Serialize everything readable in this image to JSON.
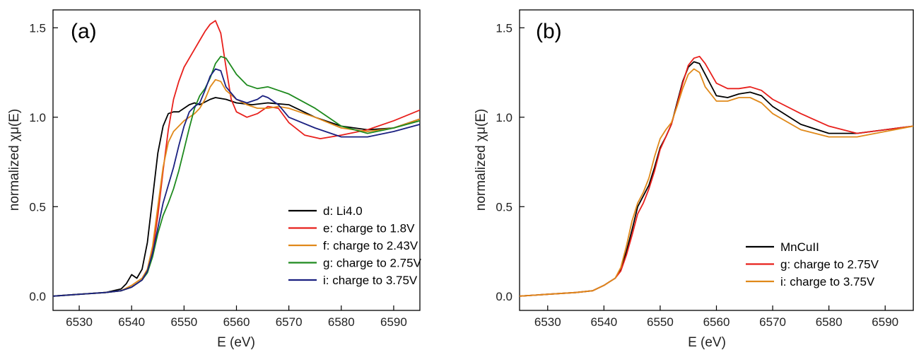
{
  "chart_data": [
    {
      "type": "line",
      "panel_label": "(a)",
      "xlabel": "E (eV)",
      "ylabel_prefix": "normalized ",
      "ylabel_symbol": "χμ",
      "ylabel_suffix": "(E)",
      "xlim": [
        6525,
        6595
      ],
      "ylim": [
        -0.08,
        1.6
      ],
      "xticks": [
        6530,
        6540,
        6550,
        6560,
        6570,
        6580,
        6590
      ],
      "yticks": [
        0.0,
        0.5,
        1.0,
        1.5
      ],
      "ytick_labels": [
        "0.0",
        "0.5",
        "1.0",
        "1.5"
      ],
      "legend_position": "bottom-right",
      "series": [
        {
          "name": "d: Li4.0",
          "color": "#000000",
          "x": [
            6525,
            6530,
            6535,
            6538,
            6539,
            6540,
            6541,
            6542,
            6543,
            6544,
            6545,
            6546,
            6547,
            6548,
            6549,
            6550,
            6551,
            6552,
            6553,
            6555,
            6556,
            6558,
            6560,
            6563,
            6566,
            6570,
            6575,
            6580,
            6585,
            6590,
            6595
          ],
          "y": [
            0.0,
            0.01,
            0.02,
            0.04,
            0.07,
            0.12,
            0.1,
            0.15,
            0.3,
            0.55,
            0.8,
            0.95,
            1.02,
            1.03,
            1.03,
            1.05,
            1.07,
            1.08,
            1.07,
            1.1,
            1.11,
            1.1,
            1.08,
            1.07,
            1.08,
            1.07,
            1.0,
            0.95,
            0.93,
            0.94,
            0.99
          ]
        },
        {
          "name": "e: charge to 1.8V",
          "color": "#e8201c",
          "x": [
            6525,
            6530,
            6535,
            6538,
            6540,
            6541,
            6542,
            6543,
            6544,
            6545,
            6546,
            6547,
            6548,
            6549,
            6550,
            6551,
            6552,
            6553,
            6554,
            6555,
            6556,
            6557,
            6558,
            6559,
            6560,
            6562,
            6564,
            6566,
            6568,
            6570,
            6573,
            6576,
            6580,
            6585,
            6590,
            6595
          ],
          "y": [
            0.0,
            0.01,
            0.02,
            0.03,
            0.05,
            0.07,
            0.09,
            0.14,
            0.25,
            0.45,
            0.7,
            0.93,
            1.1,
            1.2,
            1.28,
            1.33,
            1.38,
            1.43,
            1.48,
            1.52,
            1.54,
            1.47,
            1.28,
            1.1,
            1.03,
            1.0,
            1.02,
            1.06,
            1.05,
            0.97,
            0.9,
            0.88,
            0.9,
            0.93,
            0.98,
            1.04
          ]
        },
        {
          "name": "f: charge to 2.43V",
          "color": "#e0891a",
          "x": [
            6525,
            6530,
            6535,
            6538,
            6540,
            6541,
            6542,
            6543,
            6544,
            6545,
            6546,
            6547,
            6548,
            6549,
            6550,
            6551,
            6552,
            6553,
            6554,
            6555,
            6556,
            6557,
            6558,
            6560,
            6562,
            6564,
            6566,
            6568,
            6570,
            6575,
            6580,
            6585,
            6590,
            6595
          ],
          "y": [
            0.0,
            0.01,
            0.02,
            0.03,
            0.06,
            0.08,
            0.1,
            0.15,
            0.28,
            0.5,
            0.72,
            0.86,
            0.92,
            0.95,
            0.98,
            1.0,
            1.02,
            1.05,
            1.1,
            1.17,
            1.21,
            1.2,
            1.15,
            1.1,
            1.07,
            1.05,
            1.05,
            1.06,
            1.05,
            1.0,
            0.94,
            0.92,
            0.94,
            0.99
          ]
        },
        {
          "name": "g: charge to 2.75V",
          "color": "#1e8a1e",
          "x": [
            6525,
            6530,
            6535,
            6538,
            6540,
            6542,
            6543,
            6544,
            6545,
            6546,
            6547,
            6548,
            6549,
            6550,
            6551,
            6552,
            6553,
            6554,
            6555,
            6556,
            6557,
            6558,
            6560,
            6562,
            6564,
            6566,
            6568,
            6570,
            6575,
            6580,
            6585,
            6590,
            6595
          ],
          "y": [
            0.0,
            0.01,
            0.02,
            0.03,
            0.05,
            0.09,
            0.13,
            0.22,
            0.35,
            0.45,
            0.52,
            0.6,
            0.7,
            0.82,
            0.94,
            1.05,
            1.12,
            1.16,
            1.22,
            1.3,
            1.34,
            1.33,
            1.24,
            1.18,
            1.16,
            1.17,
            1.15,
            1.13,
            1.05,
            0.95,
            0.91,
            0.94,
            0.98
          ]
        },
        {
          "name": "i: charge to 3.75V",
          "color": "#1a2080",
          "x": [
            6525,
            6530,
            6535,
            6538,
            6540,
            6542,
            6543,
            6544,
            6545,
            6546,
            6547,
            6548,
            6549,
            6550,
            6551,
            6552,
            6553,
            6554,
            6555,
            6556,
            6557,
            6558,
            6560,
            6562,
            6564,
            6565,
            6566,
            6568,
            6570,
            6575,
            6580,
            6585,
            6590,
            6595
          ],
          "y": [
            0.0,
            0.01,
            0.02,
            0.03,
            0.05,
            0.09,
            0.14,
            0.24,
            0.38,
            0.52,
            0.62,
            0.72,
            0.84,
            0.95,
            1.03,
            1.06,
            1.08,
            1.15,
            1.23,
            1.27,
            1.26,
            1.17,
            1.1,
            1.08,
            1.1,
            1.12,
            1.11,
            1.07,
            1.0,
            0.94,
            0.89,
            0.89,
            0.92,
            0.96
          ]
        }
      ]
    },
    {
      "type": "line",
      "panel_label": "(b)",
      "xlabel": "E (eV)",
      "ylabel_prefix": "normalized ",
      "ylabel_symbol": "χμ",
      "ylabel_suffix": "(E)",
      "xlim": [
        6525,
        6595
      ],
      "ylim": [
        -0.08,
        1.6
      ],
      "xticks": [
        6530,
        6540,
        6550,
        6560,
        6570,
        6580,
        6590
      ],
      "yticks": [
        0.0,
        0.5,
        1.0,
        1.5
      ],
      "ytick_labels": [
        "0.0",
        "0.5",
        "1.0",
        "1.5"
      ],
      "legend_position": "bottom-right",
      "series": [
        {
          "name": "MnCuII",
          "color": "#000000",
          "x": [
            6525,
            6530,
            6535,
            6538,
            6540,
            6541,
            6542,
            6543,
            6544,
            6545,
            6546,
            6547,
            6548,
            6549,
            6550,
            6551,
            6552,
            6553,
            6554,
            6555,
            6556,
            6557,
            6558,
            6560,
            6562,
            6564,
            6566,
            6568,
            6570,
            6575,
            6580,
            6585,
            6590,
            6595
          ],
          "y": [
            0.0,
            0.01,
            0.02,
            0.03,
            0.06,
            0.08,
            0.1,
            0.15,
            0.25,
            0.37,
            0.5,
            0.56,
            0.62,
            0.72,
            0.83,
            0.89,
            0.96,
            1.08,
            1.2,
            1.28,
            1.31,
            1.3,
            1.24,
            1.12,
            1.11,
            1.13,
            1.14,
            1.12,
            1.06,
            0.96,
            0.91,
            0.91,
            0.93,
            0.95
          ]
        },
        {
          "name": "g: charge to 2.75V",
          "color": "#e8201c",
          "x": [
            6525,
            6530,
            6535,
            6538,
            6540,
            6541,
            6542,
            6543,
            6544,
            6545,
            6546,
            6547,
            6548,
            6549,
            6550,
            6551,
            6552,
            6553,
            6554,
            6555,
            6556,
            6557,
            6558,
            6560,
            6562,
            6564,
            6566,
            6568,
            6570,
            6575,
            6580,
            6585,
            6590,
            6595
          ],
          "y": [
            0.0,
            0.01,
            0.02,
            0.03,
            0.06,
            0.08,
            0.1,
            0.14,
            0.23,
            0.34,
            0.46,
            0.52,
            0.6,
            0.7,
            0.82,
            0.89,
            0.96,
            1.07,
            1.19,
            1.29,
            1.33,
            1.34,
            1.3,
            1.19,
            1.16,
            1.16,
            1.17,
            1.15,
            1.1,
            1.02,
            0.95,
            0.91,
            0.93,
            0.95
          ]
        },
        {
          "name": "i: charge to 3.75V",
          "color": "#e0891a",
          "x": [
            6525,
            6530,
            6535,
            6538,
            6540,
            6541,
            6542,
            6543,
            6544,
            6545,
            6546,
            6547,
            6548,
            6549,
            6550,
            6551,
            6552,
            6553,
            6554,
            6555,
            6556,
            6557,
            6558,
            6560,
            6562,
            6564,
            6566,
            6568,
            6570,
            6575,
            6580,
            6585,
            6590,
            6595
          ],
          "y": [
            0.0,
            0.01,
            0.02,
            0.03,
            0.06,
            0.08,
            0.1,
            0.16,
            0.28,
            0.42,
            0.52,
            0.58,
            0.66,
            0.78,
            0.88,
            0.93,
            0.97,
            1.06,
            1.16,
            1.24,
            1.27,
            1.25,
            1.17,
            1.09,
            1.09,
            1.11,
            1.11,
            1.08,
            1.02,
            0.93,
            0.89,
            0.89,
            0.92,
            0.95
          ]
        }
      ]
    }
  ]
}
